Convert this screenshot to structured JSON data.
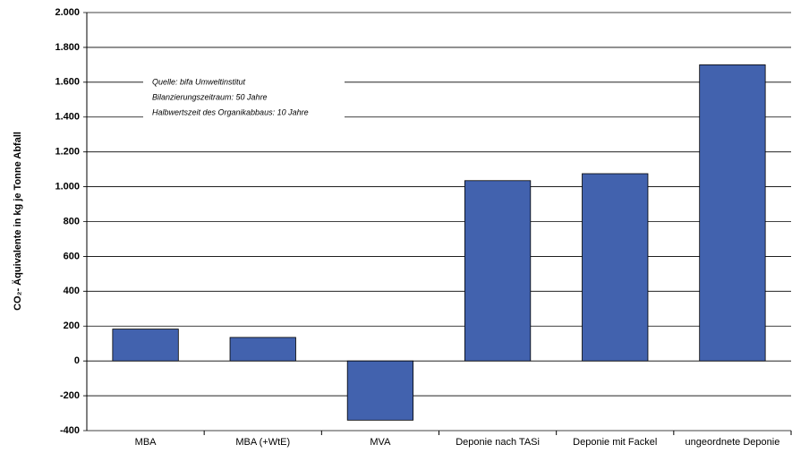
{
  "chart_data": {
    "type": "bar",
    "y_label": "CO₂- Äquivalente in kg je Tonne Abfall",
    "annotation": [
      "Quelle: bifa Umweltinstitut",
      "Bilanzierungszeitraum: 50 Jahre",
      "Halbwertszeit des Organikabbaus: 10 Jahre"
    ],
    "categories": [
      "MBA",
      "MBA (+WtE)",
      "MVA",
      "Deponie nach TASi",
      "Deponie mit Fackel",
      "ungeordnete Deponie"
    ],
    "values": [
      183,
      135,
      -340,
      1035,
      1075,
      1700
    ],
    "color": "#4262ae",
    "ylim": [
      -400,
      2000
    ],
    "yticks": [
      {
        "value": 2000,
        "label": "2.000"
      },
      {
        "value": 1800,
        "label": "1.800"
      },
      {
        "value": 1600,
        "label": "1.600"
      },
      {
        "value": 1400,
        "label": "1.400"
      },
      {
        "value": 1200,
        "label": "1.200"
      },
      {
        "value": 1000,
        "label": "1.000"
      },
      800,
      600,
      400,
      200,
      0,
      -200,
      -400
    ],
    "grid": true
  }
}
